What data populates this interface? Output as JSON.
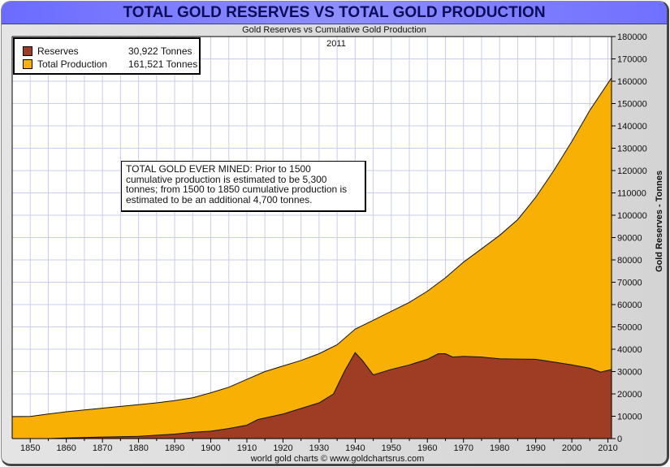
{
  "window": {
    "title": "TOTAL GOLD RESERVES VS TOTAL GOLD PRODUCTION",
    "subtitle": "Gold Reserves vs Cumulative Gold Production",
    "year_label": "2011",
    "footer": "world gold charts © www.goldchartsrus.com"
  },
  "legend": {
    "items": [
      {
        "label": "Reserves",
        "value": "30,922 Tonnes",
        "color": "#9e3d24"
      },
      {
        "label": "Total Production",
        "value": "161,521 Tonnes",
        "color": "#f8b004"
      }
    ]
  },
  "note": {
    "lines": [
      "TOTAL GOLD EVER MINED: Prior to 1500",
      "cumulative production is estimated to be 5,300",
      "tonnes; from 1500 to 1850 cumulative production is",
      "estimated to be an additional 4,700 tonnes."
    ]
  },
  "chart_data": {
    "type": "area",
    "title": "TOTAL GOLD RESERVES VS TOTAL GOLD PRODUCTION",
    "subtitle": "Gold Reserves vs Cumulative Gold Production",
    "annotation_year": "2011",
    "xlabel": "",
    "ylabel": "Gold Reserves - Tonnes",
    "xlim": [
      1845,
      2011
    ],
    "ylim": [
      0,
      180000
    ],
    "x_ticks": [
      1850,
      1860,
      1870,
      1880,
      1890,
      1900,
      1910,
      1920,
      1930,
      1940,
      1950,
      1960,
      1970,
      1980,
      1990,
      2000,
      2010
    ],
    "y_ticks": [
      0,
      10000,
      20000,
      30000,
      40000,
      50000,
      60000,
      70000,
      80000,
      90000,
      100000,
      110000,
      120000,
      130000,
      140000,
      150000,
      160000,
      170000,
      180000
    ],
    "y_axis_side": "right",
    "grid": true,
    "legend_position": "top-left",
    "series": [
      {
        "name": "Total Production",
        "color": "#f8b004",
        "points": [
          [
            1845,
            9800
          ],
          [
            1850,
            9900
          ],
          [
            1855,
            11000
          ],
          [
            1860,
            12000
          ],
          [
            1865,
            12800
          ],
          [
            1870,
            13600
          ],
          [
            1875,
            14400
          ],
          [
            1880,
            15200
          ],
          [
            1885,
            16000
          ],
          [
            1890,
            17000
          ],
          [
            1895,
            18300
          ],
          [
            1900,
            20500
          ],
          [
            1905,
            23000
          ],
          [
            1910,
            26500
          ],
          [
            1915,
            30000
          ],
          [
            1920,
            32500
          ],
          [
            1925,
            35000
          ],
          [
            1930,
            38000
          ],
          [
            1935,
            42000
          ],
          [
            1940,
            49000
          ],
          [
            1945,
            53000
          ],
          [
            1950,
            57000
          ],
          [
            1955,
            61000
          ],
          [
            1960,
            66000
          ],
          [
            1965,
            72000
          ],
          [
            1970,
            79000
          ],
          [
            1975,
            85000
          ],
          [
            1980,
            91000
          ],
          [
            1985,
            98000
          ],
          [
            1990,
            108000
          ],
          [
            1995,
            120000
          ],
          [
            2000,
            133000
          ],
          [
            2005,
            147000
          ],
          [
            2011,
            161521
          ]
        ]
      },
      {
        "name": "Reserves",
        "color": "#9e3d24",
        "points": [
          [
            1845,
            0
          ],
          [
            1855,
            0
          ],
          [
            1860,
            300
          ],
          [
            1870,
            700
          ],
          [
            1880,
            1000
          ],
          [
            1890,
            2000
          ],
          [
            1895,
            2800
          ],
          [
            1900,
            3300
          ],
          [
            1905,
            4500
          ],
          [
            1910,
            6000
          ],
          [
            1913,
            8500
          ],
          [
            1920,
            11000
          ],
          [
            1925,
            13500
          ],
          [
            1930,
            16000
          ],
          [
            1934,
            20000
          ],
          [
            1937,
            30000
          ],
          [
            1940,
            38500
          ],
          [
            1942,
            35000
          ],
          [
            1945,
            28500
          ],
          [
            1950,
            31000
          ],
          [
            1955,
            33000
          ],
          [
            1960,
            35500
          ],
          [
            1963,
            38000
          ],
          [
            1965,
            38000
          ],
          [
            1967,
            36500
          ],
          [
            1970,
            36800
          ],
          [
            1975,
            36500
          ],
          [
            1980,
            35700
          ],
          [
            1985,
            35600
          ],
          [
            1990,
            35500
          ],
          [
            1995,
            34300
          ],
          [
            2000,
            33000
          ],
          [
            2005,
            31500
          ],
          [
            2008,
            29800
          ],
          [
            2011,
            30922
          ]
        ]
      }
    ]
  }
}
